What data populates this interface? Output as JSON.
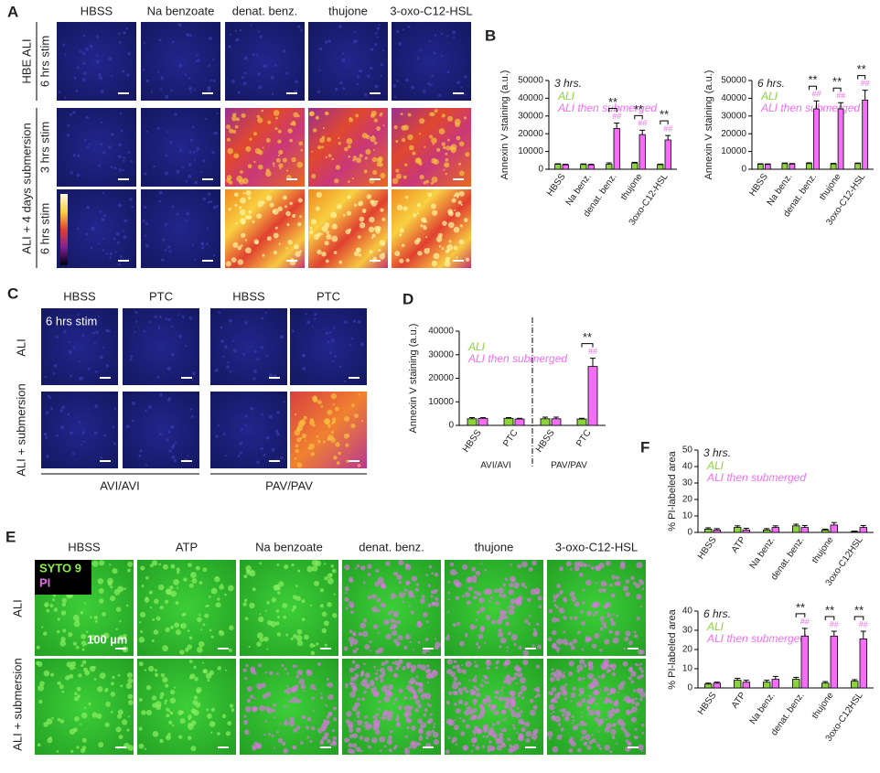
{
  "panel_a": {
    "letter": "A",
    "columns": [
      "HBSS",
      "Na benzoate",
      "denat. benz.",
      "thujone",
      "3-oxo-C12-HSL"
    ],
    "row_group_top": "HBE ALI",
    "row_group_bottom": "ALI + 4 days submersion",
    "row_labels": [
      "6 hrs stim",
      "3 hrs stim",
      "6 hrs stim"
    ]
  },
  "panel_b": {
    "letter": "B"
  },
  "panel_c": {
    "letter": "C",
    "columns": [
      "HBSS",
      "PTC",
      "HBSS",
      "PTC"
    ],
    "rows": [
      "ALI",
      "ALI + submersion"
    ],
    "inset": "6 hrs stim",
    "groups": [
      "AVI/AVI",
      "PAV/PAV"
    ]
  },
  "panel_d": {
    "letter": "D"
  },
  "panel_e": {
    "letter": "E",
    "columns": [
      "HBSS",
      "ATP",
      "Na benzoate",
      "denat. benz.",
      "thujone",
      "3-oxo-C12-HSL"
    ],
    "rows": [
      "ALI",
      "ALI + submersion"
    ],
    "stains": [
      "SYTO 9",
      "PI"
    ],
    "scale": "100 µm"
  },
  "panel_f": {
    "letter": "F"
  },
  "chart_data": [
    {
      "type": "bar",
      "title": "3 hrs.",
      "y_label": "Annexin V staining (a.u.)",
      "categories": [
        "HBSS",
        "Na benz.",
        "denat. benz.",
        "thujone",
        "3oxo-C12-HSL"
      ],
      "series": [
        {
          "name": "ALI",
          "color": "#8cd43c",
          "values": [
            2800,
            2700,
            2800,
            3500,
            2600
          ],
          "errors": [
            300,
            300,
            800,
            400,
            300
          ]
        },
        {
          "name": "ALI then submerged",
          "color": "#f36ef5",
          "values": [
            2500,
            2500,
            23000,
            19500,
            16500
          ],
          "errors": [
            300,
            300,
            3000,
            2500,
            2500
          ],
          "markers": [
            null,
            null,
            "##",
            "##",
            "##"
          ]
        }
      ],
      "comparisons": [
        null,
        null,
        "**",
        "**",
        "**"
      ],
      "ylim": [
        0,
        50000
      ],
      "yticks": [
        0,
        10000,
        20000,
        30000,
        40000,
        50000
      ]
    },
    {
      "type": "bar",
      "title": "6 hrs.",
      "y_label": "Annexin V staining (a.u.)",
      "categories": [
        "HBSS",
        "Na benz.",
        "denat. benz.",
        "thujone",
        "3oxo-C12-HSL"
      ],
      "series": [
        {
          "name": "ALI",
          "color": "#8cd43c",
          "values": [
            2800,
            3200,
            3200,
            3000,
            3200
          ],
          "errors": [
            300,
            300,
            400,
            300,
            300
          ]
        },
        {
          "name": "ALI then submerged",
          "color": "#f36ef5",
          "values": [
            2700,
            2900,
            34000,
            34000,
            39000
          ],
          "errors": [
            300,
            300,
            4500,
            3500,
            5500
          ],
          "markers": [
            null,
            null,
            "##",
            "##",
            "##"
          ]
        }
      ],
      "comparisons": [
        null,
        null,
        "**",
        "**",
        "**"
      ],
      "ylim": [
        0,
        50000
      ],
      "yticks": [
        0,
        10000,
        20000,
        30000,
        40000,
        50000
      ]
    },
    {
      "type": "bar",
      "y_label": "Annexin V staining (a.u.)",
      "categories": [
        "HBSS",
        "PTC",
        "HBSS",
        "PTC"
      ],
      "groups": [
        "AVI/AVI",
        "PAV/PAV"
      ],
      "series": [
        {
          "name": "ALI",
          "color": "#8cd43c",
          "values": [
            2800,
            3000,
            2800,
            2700
          ],
          "errors": [
            500,
            300,
            700,
            300
          ]
        },
        {
          "name": "ALI then submerged",
          "color": "#f36ef5",
          "values": [
            3000,
            2700,
            2800,
            25000
          ],
          "errors": [
            300,
            300,
            700,
            3500
          ],
          "markers": [
            null,
            null,
            null,
            "##"
          ]
        }
      ],
      "comparisons": [
        null,
        null,
        null,
        "**"
      ],
      "ylim": [
        0,
        40000
      ],
      "yticks": [
        0,
        10000,
        20000,
        30000,
        40000
      ]
    },
    {
      "type": "bar",
      "title": "3 hrs.",
      "y_label": "% PI-labeled area",
      "categories": [
        "HBSS",
        "ATP",
        "Na benz.",
        "denat. benz.",
        "thujone",
        "3oxo-C12HSL"
      ],
      "series": [
        {
          "name": "ALI",
          "color": "#8cd43c",
          "values": [
            2,
            3,
            1.5,
            4,
            1.5,
            0.5
          ],
          "errors": [
            0.8,
            1,
            0.8,
            1,
            0.5,
            0.3
          ]
        },
        {
          "name": "ALI then submerged",
          "color": "#f36ef5",
          "values": [
            1.5,
            1.5,
            3,
            3,
            4.5,
            3
          ],
          "errors": [
            0.8,
            1,
            1,
            1.2,
            1.5,
            1.2
          ]
        }
      ],
      "ylim": [
        0,
        50
      ],
      "yticks": [
        0,
        10,
        20,
        30,
        40,
        50
      ]
    },
    {
      "type": "bar",
      "title": "6 hrs.",
      "y_label": "% PI-labeled area",
      "categories": [
        "HBSS",
        "ATP",
        "Na benz.",
        "denat. benz.",
        "thujone",
        "3oxo-C12HSL"
      ],
      "series": [
        {
          "name": "ALI",
          "color": "#8cd43c",
          "values": [
            2,
            4,
            3,
            4.5,
            2.5,
            3.5
          ],
          "errors": [
            0.5,
            1,
            1,
            1,
            0.8,
            0.8
          ]
        },
        {
          "name": "ALI then submerged",
          "color": "#f36ef5",
          "values": [
            2.5,
            3,
            4.5,
            27,
            27,
            25.5
          ],
          "errors": [
            0.5,
            1,
            1.5,
            4,
            2.5,
            4
          ],
          "markers": [
            null,
            null,
            null,
            "##",
            "##",
            "##"
          ]
        }
      ],
      "comparisons": [
        null,
        null,
        null,
        "**",
        "**",
        "**"
      ],
      "ylim": [
        0,
        40
      ],
      "yticks": [
        0,
        10,
        20,
        30,
        40
      ]
    }
  ]
}
